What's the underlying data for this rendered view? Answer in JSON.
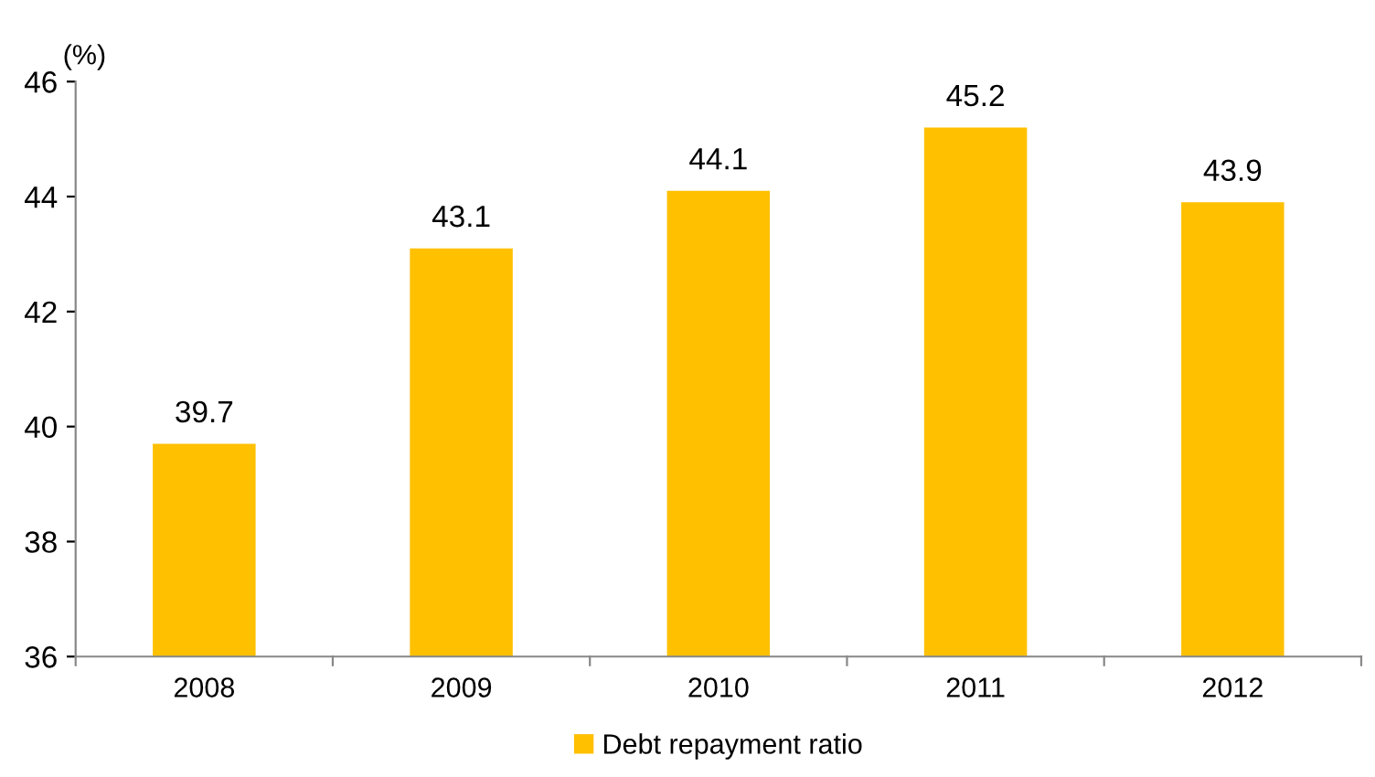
{
  "chart_data": {
    "type": "bar",
    "ylabel": "(%)",
    "categories": [
      "2008",
      "2009",
      "2010",
      "2011",
      "2012"
    ],
    "series": [
      {
        "name": "Debt repayment ratio",
        "color": "#ffc000",
        "values": [
          39.7,
          43.1,
          44.1,
          45.2,
          43.9
        ]
      }
    ],
    "ylim": [
      36,
      46
    ],
    "yticks": [
      36,
      38,
      40,
      42,
      44,
      46
    ],
    "data_labels": true,
    "legend": "bottom",
    "grid": false
  }
}
